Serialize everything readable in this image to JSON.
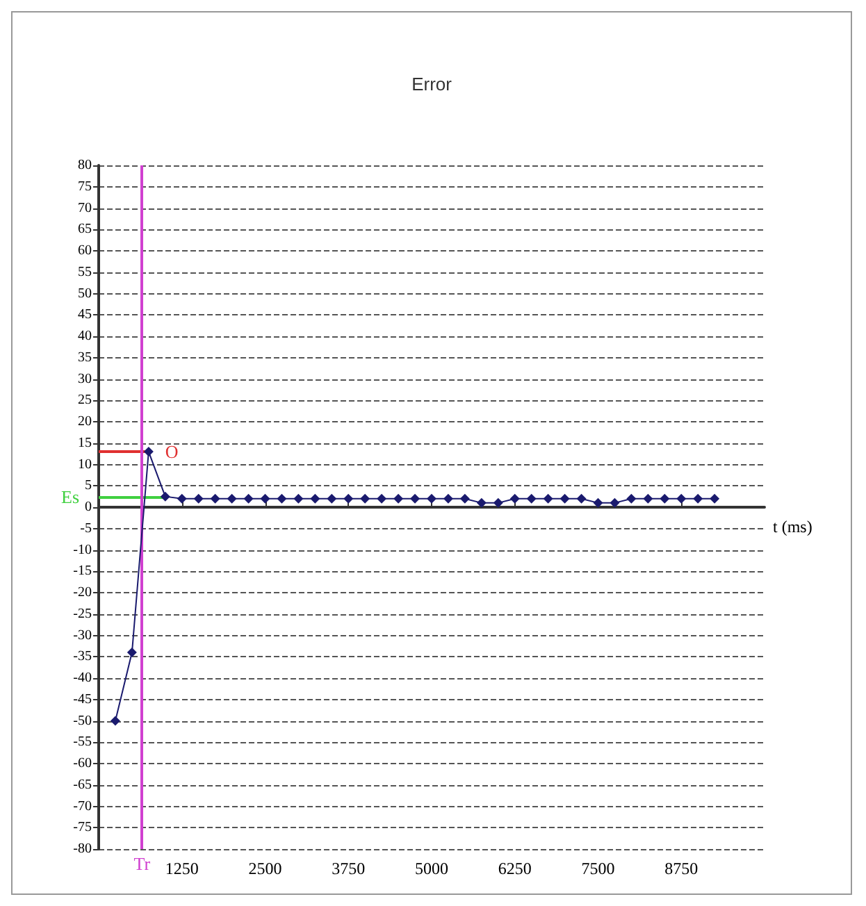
{
  "chart_data": {
    "type": "line",
    "title": "Error",
    "xlabel": "t (ms)",
    "x": [
      250,
      500,
      750,
      1000,
      1250,
      1500,
      1750,
      2000,
      2250,
      2500,
      2750,
      3000,
      3250,
      3500,
      3750,
      4000,
      4250,
      4500,
      4750,
      5000,
      5250,
      5500,
      5750,
      6000,
      6250,
      6500,
      6750,
      7000,
      7250,
      7500,
      7750,
      8000,
      8250,
      8500,
      8750,
      9000,
      9250
    ],
    "series": [
      {
        "color": "#1a1a6e",
        "values": [
          -50,
          -34,
          13,
          2.5,
          2,
          2,
          2,
          2,
          2,
          2,
          2,
          2,
          2,
          2,
          2,
          2,
          2,
          2,
          2,
          2,
          2,
          2,
          1,
          1,
          2,
          2,
          2,
          2,
          2,
          1,
          1,
          2,
          2,
          2,
          2,
          2,
          2
        ]
      }
    ],
    "xlim": [
      0,
      10000
    ],
    "xticks": [
      1250,
      2500,
      3750,
      5000,
      6250,
      7500,
      8750
    ],
    "ylim": [
      -80,
      80
    ],
    "yticks": [
      -80,
      -75,
      -70,
      -65,
      -60,
      -55,
      -50,
      -45,
      -40,
      -35,
      -30,
      -25,
      -20,
      -15,
      -10,
      -5,
      0,
      5,
      10,
      15,
      20,
      25,
      30,
      35,
      40,
      45,
      50,
      55,
      60,
      65,
      70,
      75,
      80
    ],
    "ref_lines": [
      {
        "axis": "y",
        "value": 13,
        "label": "O",
        "color": "#e03030"
      },
      {
        "axis": "y",
        "value": 2.5,
        "label": "Es",
        "color": "#40d040"
      },
      {
        "axis": "x",
        "value": 650,
        "label": "Tr",
        "color": "#d040d0"
      }
    ],
    "grid": "y",
    "marker": "diamond",
    "line_style": "solid"
  }
}
